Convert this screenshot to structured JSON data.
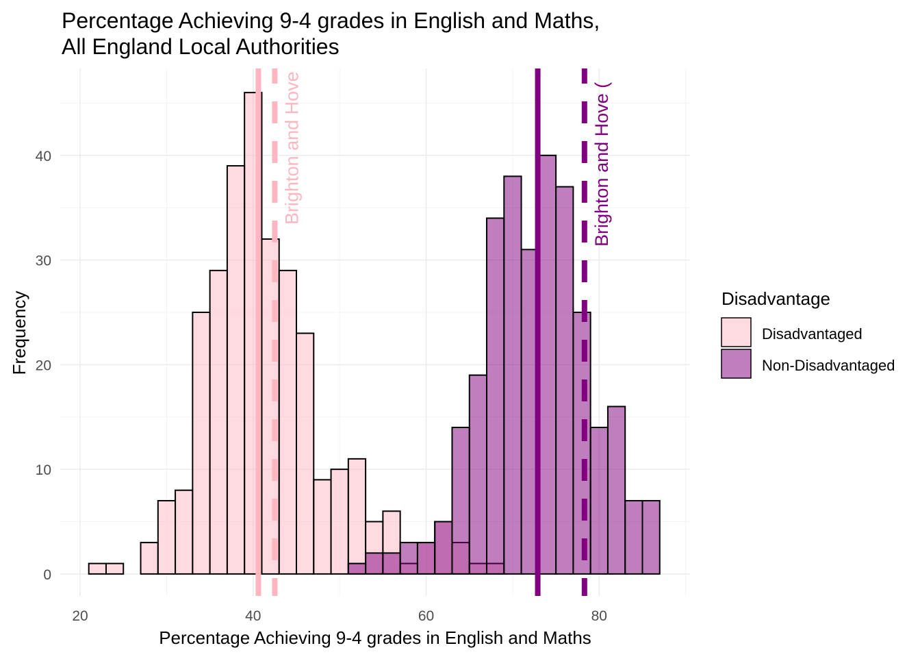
{
  "chart_data": {
    "type": "bar",
    "subtype": "overlapping-histogram",
    "title_lines": [
      "Percentage Achieving 9-4 grades in English and Maths,",
      "All England Local Authorities"
    ],
    "xlabel": "Percentage Achieving 9-4 grades in English and Maths",
    "ylabel": "Frequency",
    "xlim": [
      17.7,
      90.5
    ],
    "ylim": [
      -2.1,
      48.3
    ],
    "x_ticks": [
      20,
      40,
      60,
      80
    ],
    "y_ticks": [
      0,
      10,
      20,
      30,
      40
    ],
    "grid": true,
    "bin_width": 2,
    "bin_starts": [
      21,
      23,
      25,
      27,
      29,
      31,
      33,
      35,
      37,
      39,
      41,
      43,
      45,
      47,
      49,
      51,
      53,
      55,
      57,
      59,
      61,
      63,
      65,
      67,
      69,
      71,
      73,
      75,
      77,
      79,
      81,
      83,
      85
    ],
    "series": [
      {
        "name": "Disadvantaged",
        "color": "#FFB6C1",
        "values": [
          1,
          1,
          0,
          3,
          7,
          8,
          25,
          29,
          39,
          46,
          32,
          29,
          23,
          9,
          10,
          11,
          5,
          6,
          1,
          3,
          5,
          3,
          1,
          1,
          0,
          0,
          0,
          0,
          0,
          0,
          0,
          0,
          0
        ]
      },
      {
        "name": "Non-Disadvantaged",
        "color": "#800080",
        "values": [
          0,
          0,
          0,
          0,
          0,
          0,
          0,
          0,
          0,
          0,
          0,
          0,
          0,
          0,
          0,
          1,
          2,
          2,
          3,
          3,
          5,
          14,
          19,
          34,
          38,
          31,
          40,
          37,
          25,
          14,
          16,
          7,
          7
        ]
      }
    ],
    "reference_lines": [
      {
        "series": "Disadvantaged",
        "kind": "mean",
        "style": "solid",
        "x": 40.6,
        "color": "#FFB6C1"
      },
      {
        "series": "Disadvantaged",
        "kind": "Brighton and Hove",
        "style": "dashed",
        "x": 42.5,
        "color": "#FFB6C1",
        "label": "Brighton and Hove ("
      },
      {
        "series": "Non-Disadvantaged",
        "kind": "mean",
        "style": "solid",
        "x": 72.9,
        "color": "#800080"
      },
      {
        "series": "Non-Disadvantaged",
        "kind": "Brighton and Hove",
        "style": "dashed",
        "x": 78.3,
        "color": "#800080",
        "label": "Brighton and Hove ("
      }
    ],
    "legend": {
      "title": "Disadvantage",
      "placement": "right",
      "entries": [
        "Disadvantaged",
        "Non-Disadvantaged"
      ]
    }
  }
}
